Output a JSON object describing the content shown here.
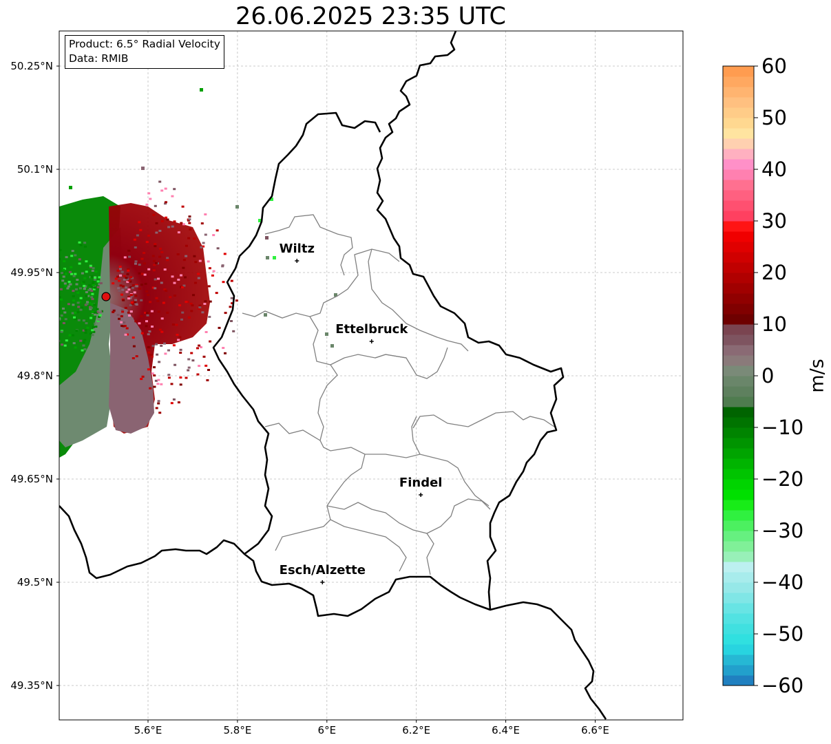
{
  "title": "26.06.2025 23:35 UTC",
  "info": {
    "product": "Product: 6.5° Radial Velocity",
    "data": "Data: RMIB"
  },
  "map": {
    "lat_ticks": [
      {
        "value": 50.25,
        "label": "50.25°N"
      },
      {
        "value": 50.1,
        "label": "50.1°N"
      },
      {
        "value": 49.95,
        "label": "49.95°N"
      },
      {
        "value": 49.8,
        "label": "49.8°N"
      },
      {
        "value": 49.65,
        "label": "49.65°N"
      },
      {
        "value": 49.5,
        "label": "49.5°N"
      },
      {
        "value": 49.35,
        "label": "49.35°N"
      }
    ],
    "lon_ticks": [
      {
        "value": 5.6,
        "label": "5.6°E"
      },
      {
        "value": 5.8,
        "label": "5.8°E"
      },
      {
        "value": 6.0,
        "label": "6°E"
      },
      {
        "value": 6.2,
        "label": "6.2°E"
      },
      {
        "value": 6.4,
        "label": "6.4°E"
      },
      {
        "value": 6.6,
        "label": "6.6°E"
      }
    ],
    "extent": {
      "lon_min": 5.4,
      "lon_max": 6.8,
      "lat_min": 49.3,
      "lat_max": 50.3
    },
    "grid": true,
    "cities": [
      {
        "name": "Wiltz",
        "lon": 5.933,
        "lat": 49.967
      },
      {
        "name": "Ettelbruck",
        "lon": 6.1,
        "lat": 49.85
      },
      {
        "name": "Findel",
        "lon": 6.21,
        "lat": 49.627
      },
      {
        "name": "Esch/Alzette",
        "lon": 5.99,
        "lat": 49.5
      }
    ],
    "radar_site": {
      "lon": 5.505,
      "lat": 49.915
    }
  },
  "colorbar": {
    "label": "m/s",
    "min": -60,
    "max": 60,
    "ticks": [
      {
        "value": 60,
        "label": "60"
      },
      {
        "value": 50,
        "label": "50"
      },
      {
        "value": 40,
        "label": "40"
      },
      {
        "value": 30,
        "label": "30"
      },
      {
        "value": 20,
        "label": "20"
      },
      {
        "value": 10,
        "label": "10"
      },
      {
        "value": 0,
        "label": "0"
      },
      {
        "value": -10,
        "label": "−10"
      },
      {
        "value": -20,
        "label": "−20"
      },
      {
        "value": -30,
        "label": "−30"
      },
      {
        "value": -40,
        "label": "−40"
      },
      {
        "value": -50,
        "label": "−50"
      },
      {
        "value": -60,
        "label": "−60"
      }
    ],
    "stops": [
      {
        "from": -60,
        "to": -58,
        "color": "#2080c0"
      },
      {
        "from": -58,
        "to": -56,
        "color": "#22a0cc"
      },
      {
        "from": -56,
        "to": -54,
        "color": "#26b8d4"
      },
      {
        "from": -54,
        "to": -52,
        "color": "#28d4e0"
      },
      {
        "from": -52,
        "to": -50,
        "color": "#30e0e0"
      },
      {
        "from": -50,
        "to": -48,
        "color": "#40e0e0"
      },
      {
        "from": -48,
        "to": -46,
        "color": "#52e2e2"
      },
      {
        "from": -46,
        "to": -44,
        "color": "#68e4e4"
      },
      {
        "from": -44,
        "to": -42,
        "color": "#80e6e6"
      },
      {
        "from": -42,
        "to": -40,
        "color": "#96e8e8"
      },
      {
        "from": -40,
        "to": -38,
        "color": "#a8ecec"
      },
      {
        "from": -38,
        "to": -36,
        "color": "#bcf0f0"
      },
      {
        "from": -36,
        "to": -34,
        "color": "#98f0b8"
      },
      {
        "from": -34,
        "to": -32,
        "color": "#80f098"
      },
      {
        "from": -32,
        "to": -30,
        "color": "#66f080"
      },
      {
        "from": -30,
        "to": -28,
        "color": "#4cf060"
      },
      {
        "from": -28,
        "to": -26,
        "color": "#30f040"
      },
      {
        "from": -26,
        "to": -24,
        "color": "#18ec18"
      },
      {
        "from": -24,
        "to": -22,
        "color": "#00e000"
      },
      {
        "from": -22,
        "to": -20,
        "color": "#00d400"
      },
      {
        "from": -20,
        "to": -18,
        "color": "#00c400"
      },
      {
        "from": -18,
        "to": -16,
        "color": "#00b400"
      },
      {
        "from": -16,
        "to": -14,
        "color": "#00a400"
      },
      {
        "from": -14,
        "to": -12,
        "color": "#009400"
      },
      {
        "from": -12,
        "to": -10,
        "color": "#008400"
      },
      {
        "from": -10,
        "to": -8,
        "color": "#007400"
      },
      {
        "from": -8,
        "to": -6,
        "color": "#006400"
      },
      {
        "from": -6,
        "to": -4,
        "color": "#4f7c4f"
      },
      {
        "from": -4,
        "to": -2,
        "color": "#5e805e"
      },
      {
        "from": -2,
        "to": 0,
        "color": "#6a866a"
      },
      {
        "from": 0,
        "to": 2,
        "color": "#7a8a78"
      },
      {
        "from": 2,
        "to": 4,
        "color": "#8a7a7a"
      },
      {
        "from": 4,
        "to": 6,
        "color": "#8a6a74"
      },
      {
        "from": 6,
        "to": 8,
        "color": "#7e5460"
      },
      {
        "from": 8,
        "to": 10,
        "color": "#7a4450"
      },
      {
        "from": 10,
        "to": 12,
        "color": "#6e0000"
      },
      {
        "from": 12,
        "to": 14,
        "color": "#800000"
      },
      {
        "from": 14,
        "to": 16,
        "color": "#900000"
      },
      {
        "from": 16,
        "to": 18,
        "color": "#a00000"
      },
      {
        "from": 18,
        "to": 20,
        "color": "#b00000"
      },
      {
        "from": 20,
        "to": 22,
        "color": "#c00000"
      },
      {
        "from": 22,
        "to": 24,
        "color": "#d00000"
      },
      {
        "from": 24,
        "to": 26,
        "color": "#e00000"
      },
      {
        "from": 26,
        "to": 28,
        "color": "#f00000"
      },
      {
        "from": 28,
        "to": 30,
        "color": "#ff1414"
      },
      {
        "from": 30,
        "to": 32,
        "color": "#ff4060"
      },
      {
        "from": 32,
        "to": 34,
        "color": "#ff5070"
      },
      {
        "from": 34,
        "to": 36,
        "color": "#ff6080"
      },
      {
        "from": 36,
        "to": 38,
        "color": "#ff7090"
      },
      {
        "from": 38,
        "to": 40,
        "color": "#ff80b0"
      },
      {
        "from": 40,
        "to": 42,
        "color": "#ff90c8"
      },
      {
        "from": 42,
        "to": 44,
        "color": "#ffb0c0"
      },
      {
        "from": 44,
        "to": 46,
        "color": "#ffd0b0"
      },
      {
        "from": 46,
        "to": 48,
        "color": "#ffe4a0"
      },
      {
        "from": 48,
        "to": 50,
        "color": "#ffd890"
      },
      {
        "from": 50,
        "to": 52,
        "color": "#ffcc88"
      },
      {
        "from": 52,
        "to": 54,
        "color": "#ffc080"
      },
      {
        "from": 54,
        "to": 56,
        "color": "#ffb470"
      },
      {
        "from": 56,
        "to": 58,
        "color": "#ffa860"
      },
      {
        "from": 58,
        "to": 60,
        "color": "#ff9c50"
      }
    ]
  },
  "colors": {
    "border": "#000000",
    "canton_lines": "#808080",
    "grid": "#bbbbbb",
    "radar_site": "#e01010"
  }
}
